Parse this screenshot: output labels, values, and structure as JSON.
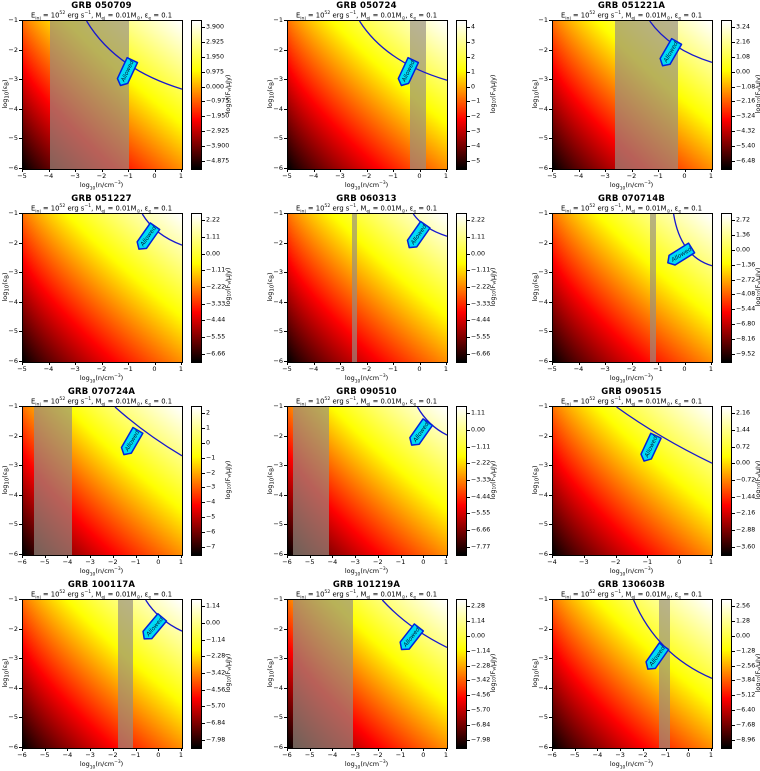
{
  "figure": {
    "subtitle": "E_{inj} = 10^{52} erg s^{−1}, M_{ej} = 0.01M_{⊙}, ε_{e} = 0.1",
    "xlabel": "log_{10}(n/cm^{−3})",
    "ylabel": "log_{10}(ε_{B})",
    "colorbar_label": "log_{10}(F_{ν}/μJy)",
    "allowed_label": "Allowed",
    "colors": {
      "curve": "#1717cf",
      "allowed_fill": "#00dcf5",
      "allowed_edge": "#0022dd",
      "allowed_text": "#001333",
      "band": "rgba(150,142,130,0.68)"
    }
  },
  "chart_data": {
    "type": "heatmap",
    "colormap": "hot",
    "grid": {
      "rows": 4,
      "cols": 3
    },
    "panels": [
      {
        "title": "GRB 050709",
        "xlim": [
          -5,
          1
        ],
        "ylim": [
          -6,
          -1
        ],
        "xticks": [
          -5,
          -4,
          -3,
          -2,
          -1,
          0,
          1
        ],
        "yticks": [
          -1,
          -2,
          -3,
          -4,
          -5,
          -6
        ],
        "cticks": [
          "3.900",
          "2.925",
          "1.950",
          "0.975",
          "0.000",
          "−0.975",
          "−1.950",
          "−2.925",
          "−3.900",
          "−4.875"
        ],
        "bands": [
          [
            -4,
            -1
          ]
        ],
        "curve": {
          "x_top": -2.6,
          "y_right": -3.3,
          "bend": 0.3
        },
        "allowed": {
          "x": -1.1,
          "y": -2.75,
          "rot": -65
        }
      },
      {
        "title": "GRB 050724",
        "xlim": [
          -5,
          1
        ],
        "ylim": [
          -6,
          -1
        ],
        "xticks": [
          -5,
          -4,
          -3,
          -2,
          -1,
          0,
          1
        ],
        "yticks": [
          -1,
          -2,
          -3,
          -4,
          -5,
          -6
        ],
        "cticks": [
          "4",
          "3",
          "2",
          "1",
          "0",
          "−1",
          "−2",
          "−3",
          "−4",
          "−5"
        ],
        "bands": [
          [
            -0.4,
            0.2
          ]
        ],
        "curve": {
          "x_top": -2.3,
          "y_right": -3.0,
          "bend": 0.3
        },
        "allowed": {
          "x": -0.5,
          "y": -2.75,
          "rot": -65
        }
      },
      {
        "title": "GRB 051221A",
        "xlim": [
          -5,
          1
        ],
        "ylim": [
          -6,
          -1
        ],
        "xticks": [
          -5,
          -4,
          -3,
          -2,
          -1,
          0,
          1
        ],
        "yticks": [
          -1,
          -2,
          -3,
          -4,
          -5,
          -6
        ],
        "cticks": [
          "3.24",
          "2.16",
          "1.08",
          "0.00",
          "−1.08",
          "−2.16",
          "−3.24",
          "−4.32",
          "−5.40",
          "−6.48"
        ],
        "bands": [
          [
            -2.65,
            -0.3
          ]
        ],
        "curve": {
          "x_top": -1.35,
          "y_right": -2.4,
          "bend": 0.32
        },
        "allowed": {
          "x": -0.6,
          "y": -2.1,
          "rot": -60
        }
      },
      {
        "title": "GRB 051227",
        "xlim": [
          -5,
          1
        ],
        "ylim": [
          -6,
          -1
        ],
        "xticks": [
          -5,
          -4,
          -3,
          -2,
          -1,
          0,
          1
        ],
        "yticks": [
          -1,
          -2,
          -3,
          -4,
          -5,
          -6
        ],
        "cticks": [
          "2.22",
          "1.11",
          "0.00",
          "−1.11",
          "−2.22",
          "−3.33",
          "−4.44",
          "−5.55",
          "−6.66"
        ],
        "bands": [],
        "curve": {
          "x_top": -0.5,
          "y_right": -2.05,
          "bend": 0.32
        },
        "allowed": {
          "x": -0.32,
          "y": -1.8,
          "rot": -55
        }
      },
      {
        "title": "GRB 060313",
        "xlim": [
          -5,
          1
        ],
        "ylim": [
          -6,
          -1
        ],
        "xticks": [
          -5,
          -4,
          -3,
          -2,
          -1,
          0,
          1
        ],
        "yticks": [
          -1,
          -2,
          -3,
          -4,
          -5,
          -6
        ],
        "cticks": [
          "2.22",
          "1.11",
          "0.00",
          "−1.11",
          "−2.22",
          "−3.33",
          "−4.44",
          "−5.55",
          "−6.66"
        ],
        "bands": [
          [
            -2.6,
            -2.4
          ]
        ],
        "curve": {
          "x_top": -0.27,
          "y_right": -1.75,
          "bend": 0.32
        },
        "allowed": {
          "x": -0.12,
          "y": -1.75,
          "rot": -55
        }
      },
      {
        "title": "GRB 070714B",
        "xlim": [
          -5,
          1
        ],
        "ylim": [
          -6,
          -1
        ],
        "xticks": [
          -5,
          -4,
          -3,
          -2,
          -1,
          0,
          1
        ],
        "yticks": [
          -1,
          -2,
          -3,
          -4,
          -5,
          -6
        ],
        "cticks": [
          "2.72",
          "1.36",
          "0.00",
          "−1.36",
          "−2.72",
          "−4.08",
          "−5.44",
          "−6.80",
          "−8.16",
          "−9.52"
        ],
        "bands": [
          [
            -1.35,
            -1.1
          ]
        ],
        "curve": {
          "x_top": -0.45,
          "y_right": -2.75,
          "bend": 0.18
        },
        "allowed": {
          "x": -0.22,
          "y": -2.4,
          "rot": -32
        }
      },
      {
        "title": "GRB 070724A",
        "xlim": [
          -6,
          1
        ],
        "ylim": [
          -6,
          -1
        ],
        "xticks": [
          -6,
          -5,
          -4,
          -3,
          -2,
          -1,
          0,
          1
        ],
        "yticks": [
          -1,
          -2,
          -3,
          -4,
          -5,
          -6
        ],
        "cticks": [
          "2",
          "1",
          "0",
          "−1",
          "−2",
          "−3",
          "−4",
          "−5",
          "−6",
          "−7"
        ],
        "bands": [
          [
            -5.5,
            -3.85
          ]
        ],
        "curve": {
          "x_top": -1.95,
          "y_right": -2.65,
          "bend": 0.45
        },
        "allowed": {
          "x": -1.25,
          "y": -2.2,
          "rot": -60
        }
      },
      {
        "title": "GRB 090510",
        "xlim": [
          -6,
          1
        ],
        "ylim": [
          -6,
          -1
        ],
        "xticks": [
          -6,
          -5,
          -4,
          -3,
          -2,
          -1,
          0,
          1
        ],
        "yticks": [
          -1,
          -2,
          -3,
          -4,
          -5,
          -6
        ],
        "cticks": [
          "1.11",
          "0.00",
          "−1.11",
          "−2.22",
          "−3.33",
          "−4.44",
          "−5.55",
          "−6.66",
          "−7.77"
        ],
        "bands": [
          [
            -5.8,
            -4.2
          ]
        ],
        "curve": {
          "x_top": -0.3,
          "y_right": -1.95,
          "bend": 0.35
        },
        "allowed": {
          "x": -0.2,
          "y": -1.9,
          "rot": -55
        }
      },
      {
        "title": "GRB 090515",
        "xlim": [
          -4,
          1
        ],
        "ylim": [
          -6,
          -1
        ],
        "xticks": [
          -4,
          -3,
          -2,
          -1,
          0,
          1
        ],
        "yticks": [
          -1,
          -2,
          -3,
          -4,
          -5,
          -6
        ],
        "cticks": [
          "2.16",
          "1.44",
          "0.72",
          "0.00",
          "−0.72",
          "−1.44",
          "−2.16",
          "−2.88",
          "−3.60"
        ],
        "bands": [],
        "curve": {
          "x_top": -2.0,
          "y_right": -2.9,
          "bend": 0.45
        },
        "allowed": {
          "x": -0.95,
          "y": -2.4,
          "rot": -65
        }
      },
      {
        "title": "GRB 100117A",
        "xlim": [
          -6,
          1
        ],
        "ylim": [
          -6,
          -1
        ],
        "xticks": [
          -6,
          -5,
          -4,
          -3,
          -2,
          -1,
          0,
          1
        ],
        "yticks": [
          -1,
          -2,
          -3,
          -4,
          -5,
          -6
        ],
        "cticks": [
          "1.14",
          "0.00",
          "−1.14",
          "−2.28",
          "−3.42",
          "−4.56",
          "−5.70",
          "−6.84",
          "−7.98"
        ],
        "bands": [
          [
            -1.8,
            -1.15
          ]
        ],
        "curve": {
          "x_top": -0.6,
          "y_right": -2.05,
          "bend": 0.35
        },
        "allowed": {
          "x": -0.27,
          "y": -1.95,
          "rot": -50
        }
      },
      {
        "title": "GRB 101219A",
        "xlim": [
          -6,
          1
        ],
        "ylim": [
          -6,
          -1
        ],
        "xticks": [
          -6,
          -5,
          -4,
          -3,
          -2,
          -1,
          0,
          1
        ],
        "yticks": [
          -1,
          -2,
          -3,
          -4,
          -5,
          -6
        ],
        "cticks": [
          "2.28",
          "1.14",
          "0.00",
          "−1.14",
          "−2.28",
          "−3.42",
          "−4.56",
          "−5.70",
          "−6.84",
          "−7.98"
        ],
        "bands": [
          [
            -5.8,
            -3.15
          ]
        ],
        "curve": {
          "x_top": -1.85,
          "y_right": -2.6,
          "bend": 0.4
        },
        "allowed": {
          "x": -0.62,
          "y": -2.3,
          "rot": -52
        }
      },
      {
        "title": "GRB 130603B",
        "xlim": [
          -6,
          1
        ],
        "ylim": [
          -6,
          -1
        ],
        "xticks": [
          -6,
          -5,
          -4,
          -3,
          -2,
          -1,
          0,
          1
        ],
        "yticks": [
          -1,
          -2,
          -3,
          -4,
          -5,
          -6
        ],
        "cticks": [
          "2.56",
          "1.28",
          "0.00",
          "−1.28",
          "−2.56",
          "−3.84",
          "−5.12",
          "−6.40",
          "−7.68",
          "−8.96"
        ],
        "bands": [
          [
            -1.35,
            -0.85
          ]
        ],
        "curve": {
          "x_top": -2.45,
          "y_right": -3.65,
          "bend": 0.3
        },
        "allowed": {
          "x": -1.47,
          "y": -2.95,
          "rot": -55
        }
      }
    ]
  }
}
